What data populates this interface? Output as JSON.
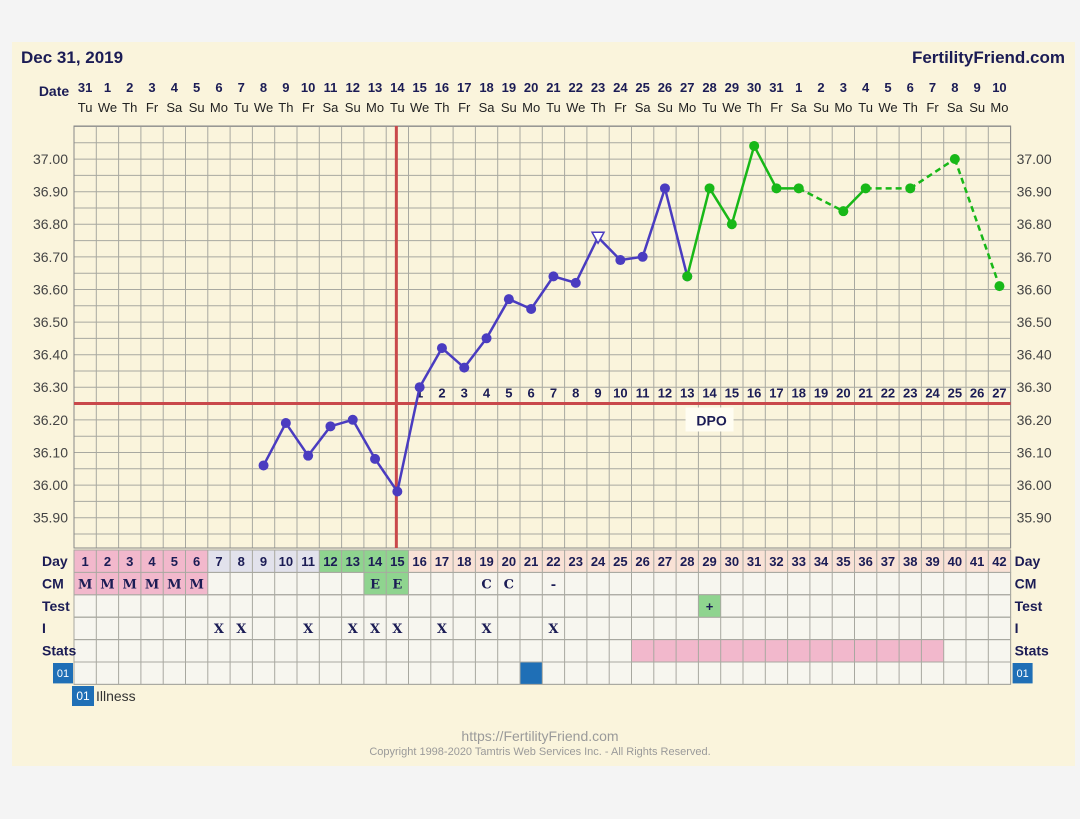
{
  "header": {
    "date": "Dec 31, 2019",
    "site": "FertilityFriend.com"
  },
  "footer": {
    "url": "https://FertilityFriend.com",
    "copyright": "Copyright 1998-2020 Tamtris Web Services Inc. - All Rights Reserved."
  },
  "legend": {
    "code": "01",
    "label": "Illness"
  },
  "chart_data": {
    "type": "line",
    "title": "",
    "xlabel": "Day",
    "ylabel": "",
    "ylim": [
      35.85,
      37.1
    ],
    "y_ticks": [
      "37.00",
      "36.90",
      "36.80",
      "36.70",
      "36.60",
      "36.50",
      "36.40",
      "36.30",
      "36.20",
      "36.10",
      "36.00",
      "35.90"
    ],
    "date_label": "Date",
    "dates": [
      "31",
      "1",
      "2",
      "3",
      "4",
      "5",
      "6",
      "7",
      "8",
      "9",
      "10",
      "11",
      "12",
      "13",
      "14",
      "15",
      "16",
      "17",
      "18",
      "19",
      "20",
      "21",
      "22",
      "23",
      "24",
      "25",
      "26",
      "27",
      "28",
      "29",
      "30",
      "31",
      "1",
      "2",
      "3",
      "4",
      "5",
      "6",
      "7",
      "8",
      "9",
      "10"
    ],
    "weekdays": [
      "Tu",
      "We",
      "Th",
      "Fr",
      "Sa",
      "Su",
      "Mo",
      "Tu",
      "We",
      "Th",
      "Fr",
      "Sa",
      "Su",
      "Mo",
      "Tu",
      "We",
      "Th",
      "Fr",
      "Sa",
      "Su",
      "Mo",
      "Tu",
      "We",
      "Th",
      "Fr",
      "Sa",
      "Su",
      "Mo",
      "Tu",
      "We",
      "Th",
      "Fr",
      "Sa",
      "Su",
      "Mo",
      "Tu",
      "We",
      "Th",
      "Fr",
      "Sa",
      "Su",
      "Mo"
    ],
    "cycle_days": [
      "1",
      "2",
      "3",
      "4",
      "5",
      "6",
      "7",
      "8",
      "9",
      "10",
      "11",
      "12",
      "13",
      "14",
      "15",
      "16",
      "17",
      "18",
      "19",
      "20",
      "21",
      "22",
      "23",
      "24",
      "25",
      "26",
      "27",
      "28",
      "29",
      "30",
      "31",
      "32",
      "33",
      "34",
      "35",
      "36",
      "37",
      "38",
      "39",
      "40",
      "41",
      "42"
    ],
    "dpo": [
      "1",
      "2",
      "3",
      "4",
      "5",
      "6",
      "7",
      "8",
      "9",
      "10",
      "11",
      "12",
      "13",
      "14",
      "15",
      "16",
      "17",
      "18",
      "19",
      "20",
      "21",
      "22",
      "23",
      "24",
      "25",
      "26",
      "27"
    ],
    "dpo_label": "DPO",
    "coverline": 36.25,
    "ovulation_day": 15,
    "series": [
      {
        "color": "#4a3cc0",
        "points": [
          [
            9,
            36.06
          ],
          [
            10,
            36.19
          ],
          [
            11,
            36.09
          ],
          [
            12,
            36.18
          ],
          [
            13,
            36.2
          ],
          [
            14,
            36.08
          ],
          [
            15,
            35.98
          ],
          [
            16,
            36.3
          ],
          [
            17,
            36.42
          ],
          [
            18,
            36.36
          ],
          [
            19,
            36.45
          ],
          [
            20,
            36.57
          ],
          [
            21,
            36.54
          ],
          [
            22,
            36.64
          ],
          [
            23,
            36.62
          ],
          [
            24,
            36.76
          ],
          [
            25,
            36.69
          ],
          [
            26,
            36.7
          ],
          [
            27,
            36.91
          ],
          [
            28,
            36.64
          ]
        ],
        "open_markers": [
          24
        ]
      },
      {
        "color": "#18b818",
        "points": [
          [
            28,
            36.64
          ],
          [
            29,
            36.91
          ],
          [
            30,
            36.8
          ],
          [
            31,
            37.04
          ],
          [
            32,
            36.91
          ],
          [
            33,
            36.91
          ],
          [
            35,
            36.84
          ],
          [
            36,
            36.91
          ],
          [
            38,
            36.91
          ],
          [
            40,
            37.0
          ],
          [
            42,
            36.61
          ]
        ],
        "dashed_after": [
          33,
          36,
          38,
          40
        ]
      }
    ],
    "rows": {
      "day_label": "Day",
      "cm_label": "CM",
      "test_label": "Test",
      "i_label": "I",
      "stats_label": "Stats",
      "code_label": "01",
      "cm": {
        "1": "M",
        "2": "M",
        "3": "M",
        "4": "M",
        "5": "M",
        "6": "M",
        "14": "E",
        "15": "E",
        "19": "C",
        "20": "C",
        "22": "-"
      },
      "test": {
        "29": "+"
      },
      "intercourse": {
        "7": "X",
        "8": "X",
        "11": "X",
        "13": "X",
        "14": "X",
        "15": "X",
        "17": "X",
        "19": "X",
        "22": "X"
      },
      "stats_range": [
        26,
        39
      ],
      "illness_days": [
        21
      ]
    },
    "colors": {
      "background": "#faf4dc",
      "grid": "#a8a8a0",
      "axis_text": "#1b1c55",
      "coverline": "#c9484b",
      "menses": "#f2b8cc",
      "fertile": "#8fd48f",
      "stats": "#f2b8cc",
      "illness": "#1f6fb6"
    }
  }
}
